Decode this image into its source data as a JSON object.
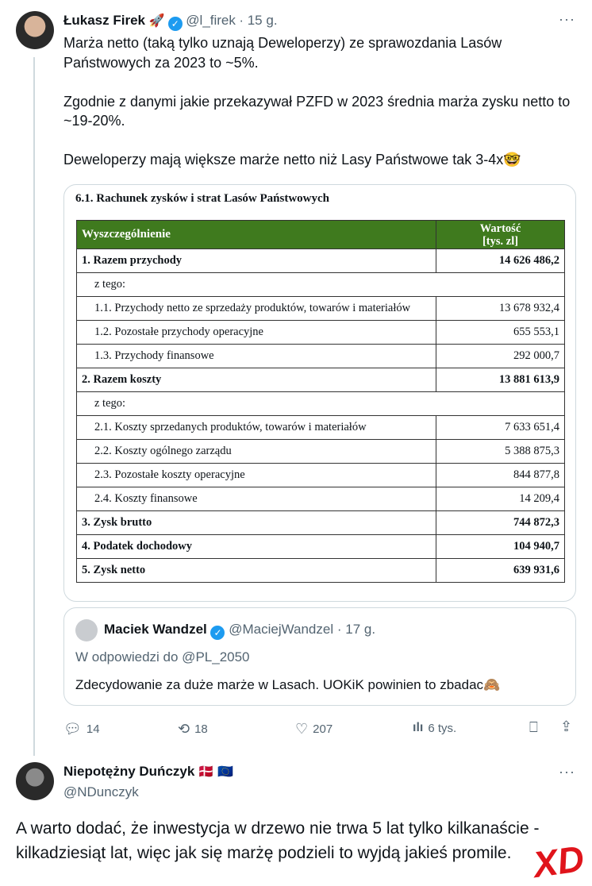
{
  "tweet1": {
    "name": "Łukasz Firek",
    "handle": "@l_firek",
    "time": "· 15 g.",
    "text": "Marża netto (taką tylko uznają Deweloperzy) ze sprawozdania Lasów Państwowych za 2023 to ~5%.\n\nZgodnie z danymi jakie przekazywał PZFD  w 2023 średnia marża zysku netto to ~19-20%.\n\nDeweloperzy mają większe marże netto niż Lasy Państwowe tak 3-4x🤓"
  },
  "media": {
    "title": "6.1. Rachunek zysków i strat Lasów Państwowych",
    "header": [
      "Wyszczególnienie",
      "Wartość\n[tys. zl]"
    ],
    "header_color": "#3f7a1e",
    "rows": [
      {
        "label": "1. Razem przychody",
        "value": "14 626 486,2",
        "bold": true
      },
      {
        "label": "z tego:",
        "value": ""
      },
      {
        "label": "1.1. Przychody netto ze sprzedaży produktów, towarów i materiałów",
        "value": "13 678 932,4"
      },
      {
        "label": "1.2. Pozostałe przychody operacyjne",
        "value": "655 553,1"
      },
      {
        "label": "1.3. Przychody finansowe",
        "value": "292 000,7"
      },
      {
        "label": "2. Razem koszty",
        "value": "13 881 613,9",
        "bold": true
      },
      {
        "label": "z tego:",
        "value": ""
      },
      {
        "label": "2.1. Koszty sprzedanych produktów, towarów i materiałów",
        "value": "7 633 651,4"
      },
      {
        "label": "2.2. Koszty ogólnego zarządu",
        "value": "5 388 875,3"
      },
      {
        "label": "2.3. Pozostałe koszty operacyjne",
        "value": "844 877,8"
      },
      {
        "label": "2.4. Koszty finansowe",
        "value": "14 209,4"
      },
      {
        "label": "3. Zysk brutto",
        "value": "744 872,3",
        "bold": true
      },
      {
        "label": "4. Podatek dochodowy",
        "value": "104 940,7",
        "bold": true
      },
      {
        "label": "5. Zysk netto",
        "value": "639 931,6",
        "bold": true
      }
    ]
  },
  "quote": {
    "name": "Maciek Wandzel",
    "handle": "@MaciejWandzel",
    "time": "· 17 g.",
    "reply_to": "W odpowiedzi do @PL_2050",
    "text": "Zdecydowanie za duże marże w Lasach. UOKiK powinien to zbadac🙈"
  },
  "actions": {
    "replies": "14",
    "reposts": "18",
    "likes": "207",
    "views": "6 tys."
  },
  "tweet2": {
    "name": "Niepotężny Duńczyk",
    "flags": "🇩🇰 🇪🇺",
    "handle": "@NDunczyk",
    "text": "A warto dodać, że inwestycja w drzewo nie trwa 5 lat tylko kilkanaście - kilkadziesiąt lat, więc jak się marżę podzieli to wyjdą jakieś promile.",
    "sticker": "XD"
  },
  "colors": {
    "accent": "#1d9bf0",
    "sticker": "#e0141b"
  }
}
